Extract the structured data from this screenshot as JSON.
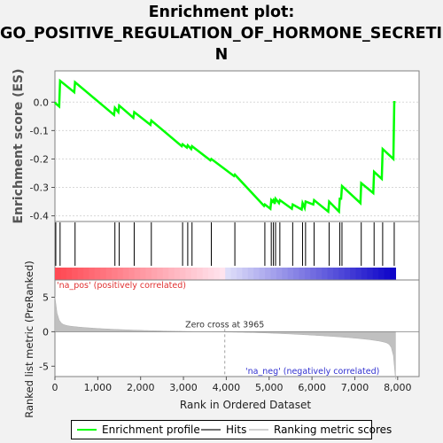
{
  "chart_data": {
    "type": "line",
    "title_line1": "Enrichment plot:",
    "title_line2": "GO_POSITIVE_REGULATION_OF_HORMONE_SECRETIO",
    "title_line3": "N",
    "ylabel_top": "Enrichment score (ES)",
    "ylabel_bottom": "Ranked list metric (PreRanked)",
    "xlabel": "Rank in Ordered Dataset",
    "xlim": [
      0,
      8500
    ],
    "ylim_top": [
      -0.42,
      0.11
    ],
    "ylim_bottom": [
      -6.5,
      7.5
    ],
    "x_ticks": [
      "0",
      "1,000",
      "2,000",
      "3,000",
      "4,000",
      "5,000",
      "6,000",
      "7,000",
      "8,000"
    ],
    "x_tick_values": [
      0,
      1000,
      2000,
      3000,
      4000,
      5000,
      6000,
      7000,
      8000
    ],
    "y_ticks_top": [
      "0.0",
      "-0.1",
      "-0.2",
      "-0.3",
      "-0.4"
    ],
    "y_tick_values_top": [
      0.0,
      -0.1,
      -0.2,
      -0.3,
      -0.4
    ],
    "y_ticks_bottom": [
      "5",
      "0",
      "-5"
    ],
    "y_tick_values_bottom": [
      5,
      0,
      -5
    ],
    "zero_cross_label": "Zero cross at 3965",
    "zero_cross": 3965,
    "pos_label": "'na_pos' (positively correlated)",
    "neg_label": "'na_neg' (negatively correlated)",
    "dataset_size": 7950,
    "hits": [
      20,
      120,
      470,
      1400,
      1500,
      1850,
      2250,
      2980,
      3100,
      3200,
      3650,
      4200,
      4900,
      5050,
      5100,
      5150,
      5250,
      5550,
      5780,
      5850,
      6050,
      6400,
      6650,
      6700,
      7150,
      7450,
      7650,
      7920
    ],
    "series": [
      {
        "name": "Enrichment profile",
        "color": "#00ff00",
        "x": [
          0,
          20,
          100,
          120,
          450,
          470,
          1380,
          1400,
          1480,
          1500,
          1830,
          1850,
          2230,
          2250,
          2960,
          2980,
          3080,
          3100,
          3180,
          3200,
          3630,
          3650,
          4180,
          4200,
          4880,
          4900,
          5030,
          5050,
          5080,
          5100,
          5130,
          5150,
          5230,
          5250,
          5530,
          5550,
          5760,
          5780,
          5830,
          5850,
          6030,
          6050,
          6380,
          6400,
          6630,
          6650,
          6680,
          6700,
          7130,
          7150,
          7430,
          7450,
          7630,
          7650,
          7900,
          7920,
          7950
        ],
        "y": [
          0.0,
          -0.005,
          -0.015,
          0.075,
          0.035,
          0.07,
          -0.045,
          -0.02,
          -0.035,
          -0.012,
          -0.055,
          -0.035,
          -0.08,
          -0.065,
          -0.155,
          -0.148,
          -0.16,
          -0.152,
          -0.165,
          -0.155,
          -0.205,
          -0.2,
          -0.26,
          -0.255,
          -0.365,
          -0.36,
          -0.375,
          -0.345,
          -0.35,
          -0.345,
          -0.358,
          -0.34,
          -0.355,
          -0.345,
          -0.375,
          -0.36,
          -0.378,
          -0.355,
          -0.372,
          -0.35,
          -0.36,
          -0.345,
          -0.385,
          -0.35,
          -0.385,
          -0.34,
          -0.34,
          -0.295,
          -0.355,
          -0.285,
          -0.32,
          -0.245,
          -0.27,
          -0.165,
          -0.2,
          0.0,
          0.0
        ]
      },
      {
        "name": "Hits",
        "color": "#000000"
      },
      {
        "name": "Ranking metric scores",
        "color": "#c0c0c0"
      }
    ]
  }
}
